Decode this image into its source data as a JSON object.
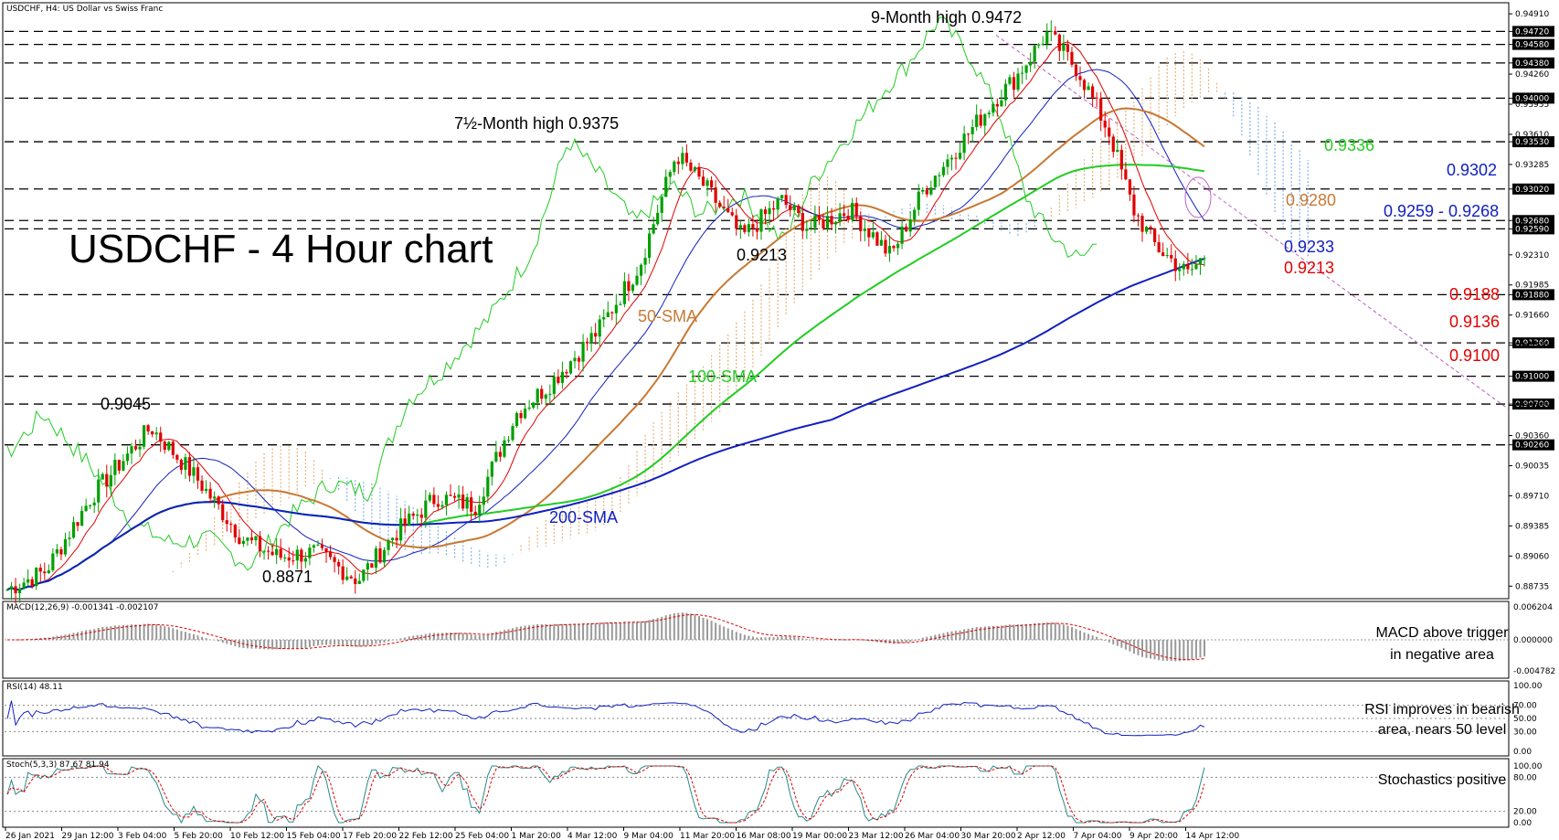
{
  "header": {
    "symbol": "USDCHF, H4:  US Dollar vs Swiss Franc"
  },
  "title": "USDCHF - 4 Hour chart",
  "colors": {
    "bull": "#00a000",
    "bear": "#e00000",
    "sma50": "#c87832",
    "sma100": "#22cc22",
    "sma200": "#1020c0",
    "tenkan": "#e00000",
    "kijun": "#1020c0",
    "chikou": "#22cc22",
    "cloud_bull": "#e6b07a",
    "cloud_bear": "#80b0e8"
  },
  "price_axis": {
    "ticks": [
      "0.94910",
      "0.94720",
      "0.94580",
      "0.94380",
      "0.94260",
      "0.94000",
      "0.93935",
      "0.93610",
      "0.93530",
      "0.93285",
      "0.93020",
      "0.92680",
      "0.92590",
      "0.92310",
      "0.91985",
      "0.91880",
      "0.91660",
      "0.91360",
      "0.91335",
      "0.91000",
      "0.90700",
      "0.90685",
      "0.90360",
      "0.90260",
      "0.90035",
      "0.89710",
      "0.89385",
      "0.89060",
      "0.88735"
    ],
    "tagged": [
      "0.94720",
      "0.94580",
      "0.94380",
      "0.94000",
      "0.93530",
      "0.93020",
      "0.92680",
      "0.92590",
      "0.91880",
      "0.91360",
      "0.91000",
      "0.90700",
      "0.90260"
    ]
  },
  "time_axis": [
    "26 Jan 2021",
    "29 Jan 12:00",
    "3 Feb 04:00",
    "5 Feb 20:00",
    "10 Feb 12:00",
    "15 Feb 04:00",
    "17 Feb 20:00",
    "22 Feb 12:00",
    "25 Feb 04:00",
    "1 Mar 20:00",
    "4 Mar 12:00",
    "9 Mar 04:00",
    "11 Mar 20:00",
    "16 Mar 08:00",
    "19 Mar 00:00",
    "23 Mar 12:00",
    "26 Mar 04:00",
    "30 Mar 20:00",
    "2 Apr 12:00",
    "7 Apr 04:00",
    "9 Apr 20:00",
    "14 Apr 12:00"
  ],
  "annotations": {
    "nine_month_high": "9-Month high 0.9472",
    "seven_half_month_high": "7½-Month high 0.9375",
    "low_9045": "0.9045",
    "low_8871": "0.8871",
    "level_9213_mid": "0.9213",
    "sma50_label": "50-SMA",
    "sma100_label": "100-SMA",
    "sma200_label": "200-SMA",
    "r_9336": "0.9336",
    "r_9302": "0.9302",
    "r_9280": "0.9280",
    "r_9259_9268": "0.9259 - 0.9268",
    "r_9233": "0.9233",
    "s_9213": "0.9213",
    "s_9188": "0.9188",
    "s_9136": "0.9136",
    "s_9100": "0.9100"
  },
  "macd": {
    "header": "MACD(12,26,9) -0.001341 -0.002107",
    "ticks": [
      "0.006204",
      "0.000000",
      "-0.004782"
    ],
    "comment_1": "MACD above trigger",
    "comment_2": "in negative area"
  },
  "rsi": {
    "header": "RSI(14) 48.11",
    "ticks": [
      "100.00",
      "70.00",
      "50.00",
      "30.00",
      "0.00"
    ],
    "comment_1": "RSI improves in bearish",
    "comment_2": "area, nears 50 level"
  },
  "stoch": {
    "header": "Stoch(5,3,3) 87.67 81.94",
    "ticks": [
      "100.00",
      "80.00",
      "20.00",
      "0.00"
    ],
    "comment": "Stochastics positive"
  },
  "chart_data": {
    "type": "candlestick",
    "title": "USDCHF - 4 Hour chart",
    "y_range": [
      0.886,
      0.95
    ],
    "key_points": [
      {
        "label": "0.9045",
        "value": 0.9045,
        "date": "3 Feb 2021"
      },
      {
        "label": "0.8871",
        "value": 0.8871,
        "date": "15 Feb 2021"
      },
      {
        "label": "7½-Month high 0.9375",
        "value": 0.9375,
        "date": "5 Mar 2021"
      },
      {
        "label": "0.9213",
        "value": 0.9213,
        "date": "11 Mar 2021"
      },
      {
        "label": "9-Month high 0.9472",
        "value": 0.9472,
        "date": "31 Mar 2021"
      }
    ],
    "close_path": [
      [
        "26 Jan",
        0.887
      ],
      [
        "28 Jan",
        0.889
      ],
      [
        "1 Feb",
        0.897
      ],
      [
        "3 Feb",
        0.9045
      ],
      [
        "5 Feb",
        0.899
      ],
      [
        "8 Feb",
        0.8925
      ],
      [
        "10 Feb",
        0.8905
      ],
      [
        "12 Feb",
        0.891
      ],
      [
        "15 Feb",
        0.888
      ],
      [
        "16 Feb",
        0.893
      ],
      [
        "18 Feb",
        0.897
      ],
      [
        "22 Feb",
        0.896
      ],
      [
        "24 Feb",
        0.906
      ],
      [
        "26 Feb",
        0.909
      ],
      [
        "1 Mar",
        0.915
      ],
      [
        "3 Mar",
        0.922
      ],
      [
        "5 Mar",
        0.934
      ],
      [
        "8 Mar",
        0.93
      ],
      [
        "10 Mar",
        0.925
      ],
      [
        "12 Mar",
        0.929
      ],
      [
        "16 Mar",
        0.926
      ],
      [
        "18 Mar",
        0.928
      ],
      [
        "19 Mar",
        0.923
      ],
      [
        "22 Mar",
        0.93
      ],
      [
        "24 Mar",
        0.935
      ],
      [
        "26 Mar",
        0.94
      ],
      [
        "29 Mar",
        0.942
      ],
      [
        "31 Mar",
        0.947
      ],
      [
        "1 Apr",
        0.943
      ],
      [
        "5 Apr",
        0.936
      ],
      [
        "7 Apr",
        0.928
      ],
      [
        "8 Apr",
        0.924
      ],
      [
        "12 Apr",
        0.921
      ],
      [
        "14 Apr",
        0.923
      ]
    ]
  }
}
